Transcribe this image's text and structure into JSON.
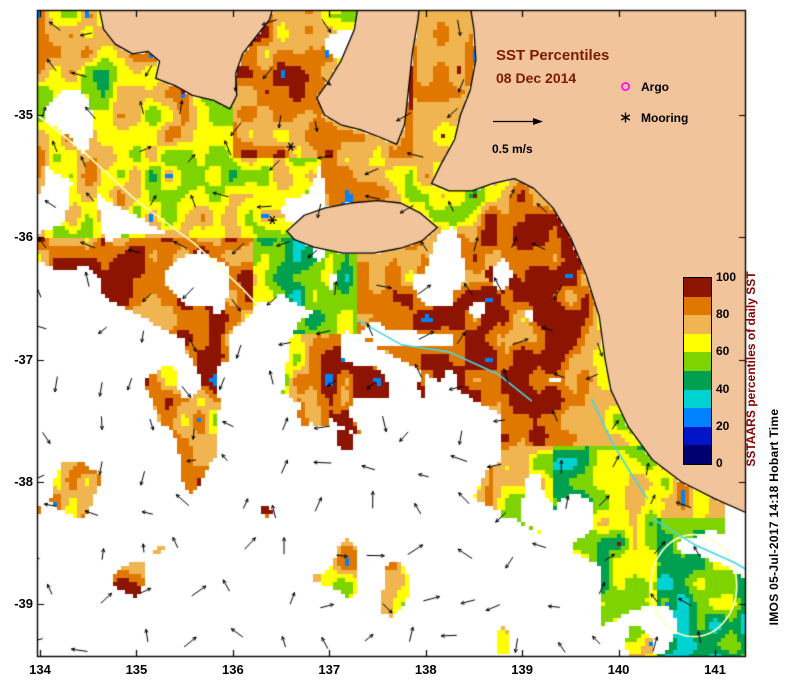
{
  "figure": {
    "title": "SST Percentiles",
    "date": "08 Dec 2014",
    "speed_label": "0.5 m/s",
    "credit": "IMOS 05-Jul-2017 14:18 Hobart Time"
  },
  "legend": {
    "argo": "Argo",
    "mooring": "Mooring"
  },
  "colorbar": {
    "label": "SSTAARS percentiles of daily SST",
    "ticks": [
      "100",
      "80",
      "60",
      "40",
      "20",
      "0"
    ],
    "colors": [
      "#00006e",
      "#0014c8",
      "#0082ff",
      "#00d2d2",
      "#00a050",
      "#7dd400",
      "#ffff00",
      "#f0b450",
      "#e07800",
      "#8c1400"
    ]
  },
  "axes": {
    "x_ticks": [
      "134",
      "135",
      "136",
      "137",
      "138",
      "139",
      "140",
      "141"
    ],
    "y_ticks": [
      "-35",
      "-36",
      "-37",
      "-38",
      "-39"
    ]
  },
  "map": {
    "land_color": "#f1c49c",
    "no_data_color": "#ffffff",
    "coast_color": "#000000",
    "argo_marker_color": "#ff00ff",
    "mooring_marker_color": "#000000",
    "front_contour_color": "#45d7e8",
    "isoline_contour_color": "#ffffc0"
  }
}
